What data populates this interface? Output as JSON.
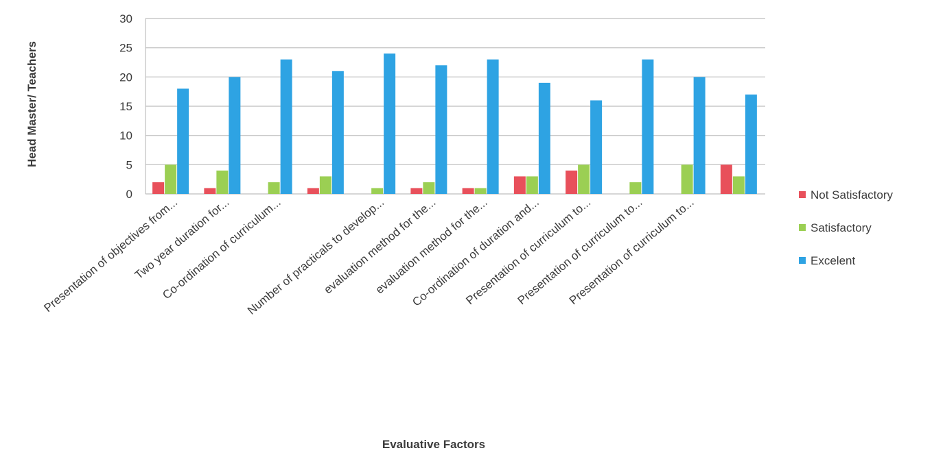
{
  "chart_data": {
    "type": "bar",
    "title": "",
    "xlabel": "Evaluative Factors",
    "ylabel": "Head Master/ Teachers",
    "ylim": [
      0,
      30
    ],
    "yticks": [
      "0",
      "5",
      "10",
      "15",
      "20",
      "25",
      "30"
    ],
    "grid": true,
    "legend_position": "right",
    "categories": [
      "Presentation of objectives from...",
      "Two year duration for...",
      "Co-ordination of curriculum...",
      "",
      "Number of practicals to develop...",
      "evaluation method for the...",
      "evaluation method for the...",
      "Co-ordination of duration and...",
      "Presentation of curriculum to...",
      "Presentation of curriculum to...",
      "Presentation of curriculum to...",
      ""
    ],
    "series": [
      {
        "name": "Not Satisfactory",
        "color": "#e8505b",
        "values": [
          2,
          1,
          0,
          1,
          0,
          1,
          1,
          3,
          4,
          0,
          0,
          5
        ]
      },
      {
        "name": "Satisfactory",
        "color": "#9bcf53",
        "values": [
          5,
          4,
          2,
          3,
          1,
          2,
          1,
          3,
          5,
          2,
          5,
          3
        ]
      },
      {
        "name": "Excelent",
        "color": "#2ea3e3",
        "values": [
          18,
          20,
          23,
          21,
          24,
          22,
          23,
          19,
          16,
          23,
          20,
          17
        ]
      }
    ]
  }
}
